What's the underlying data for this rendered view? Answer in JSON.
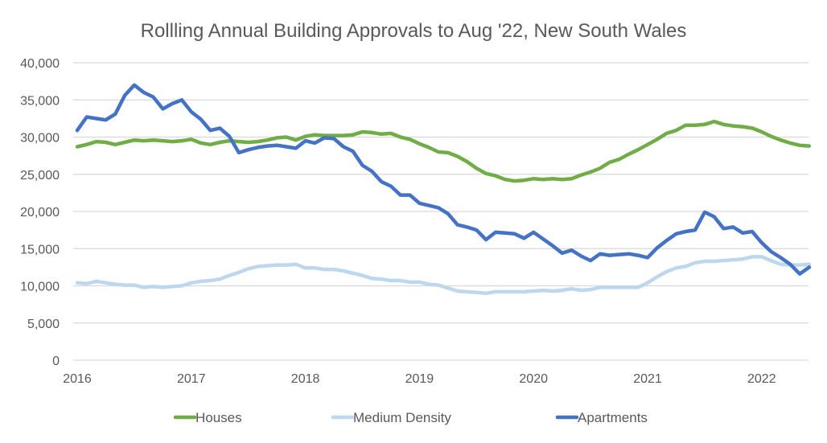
{
  "chart_data": {
    "type": "line",
    "title": "Rollling Annual Building Approvals to Aug '22, New South Wales",
    "xlabel": "",
    "ylabel": "",
    "ylim": [
      0,
      40000
    ],
    "yticks": [
      0,
      5000,
      10000,
      15000,
      20000,
      25000,
      30000,
      35000,
      40000
    ],
    "ytick_labels": [
      "0",
      "5,000",
      "10,000",
      "15,000",
      "20,000",
      "25,000",
      "30,000",
      "35,000",
      "40,000"
    ],
    "xticks": [
      "2016",
      "2017",
      "2018",
      "2019",
      "2020",
      "2021",
      "2022"
    ],
    "x_start": "2016-01",
    "x_frequency": "monthly",
    "grid": true,
    "legend_position": "bottom",
    "series": [
      {
        "name": "Houses",
        "color": "#70ad47",
        "values": [
          28700,
          29000,
          29400,
          29300,
          29000,
          29300,
          29600,
          29500,
          29600,
          29500,
          29400,
          29500,
          29700,
          29200,
          29000,
          29300,
          29500,
          29400,
          29300,
          29400,
          29600,
          29900,
          30000,
          29600,
          30100,
          30300,
          30200,
          30200,
          30200,
          30300,
          30700,
          30600,
          30400,
          30500,
          30000,
          29700,
          29100,
          28600,
          28000,
          27900,
          27400,
          26700,
          25800,
          25100,
          24800,
          24300,
          24100,
          24200,
          24400,
          24300,
          24400,
          24300,
          24400,
          24900,
          25300,
          25800,
          26600,
          27000,
          27700,
          28300,
          29000,
          29700,
          30500,
          30900,
          31600,
          31600,
          31700,
          32100,
          31700,
          31500,
          31400,
          31200,
          30700,
          30100,
          29600,
          29200,
          28900,
          28800
        ]
      },
      {
        "name": "Medium Density",
        "color": "#bdd7ee",
        "values": [
          10400,
          10300,
          10600,
          10400,
          10200,
          10100,
          10100,
          9800,
          9900,
          9800,
          9900,
          10000,
          10400,
          10600,
          10700,
          10900,
          11400,
          11800,
          12300,
          12600,
          12700,
          12800,
          12800,
          12900,
          12400,
          12400,
          12200,
          12200,
          12000,
          11700,
          11400,
          11000,
          10900,
          10700,
          10700,
          10500,
          10500,
          10200,
          10100,
          9700,
          9300,
          9200,
          9100,
          9000,
          9200,
          9200,
          9200,
          9200,
          9300,
          9400,
          9300,
          9400,
          9600,
          9400,
          9500,
          9800,
          9800,
          9800,
          9800,
          9800,
          10400,
          11200,
          11900,
          12400,
          12600,
          13100,
          13300,
          13300,
          13400,
          13500,
          13600,
          13900,
          13900,
          13400,
          12900,
          12800,
          12800,
          12900
        ]
      },
      {
        "name": "Apartments",
        "color": "#4472c4",
        "values": [
          30900,
          32700,
          32500,
          32300,
          33100,
          35600,
          37000,
          36000,
          35400,
          33800,
          34500,
          35000,
          33400,
          32400,
          30900,
          31200,
          30100,
          27900,
          28300,
          28600,
          28800,
          28900,
          28700,
          28500,
          29500,
          29200,
          29900,
          29800,
          28700,
          28100,
          26200,
          25400,
          24000,
          23400,
          22200,
          22200,
          21100,
          20800,
          20500,
          19700,
          18200,
          17900,
          17500,
          16200,
          17200,
          17100,
          17000,
          16400,
          17200,
          16300,
          15400,
          14400,
          14800,
          14000,
          13400,
          14300,
          14100,
          14200,
          14300,
          14100,
          13800,
          15100,
          16100,
          17000,
          17300,
          17500,
          19900,
          19300,
          17700,
          17900,
          17100,
          17300,
          15800,
          14600,
          13800,
          12900,
          11600,
          12500
        ]
      }
    ]
  }
}
